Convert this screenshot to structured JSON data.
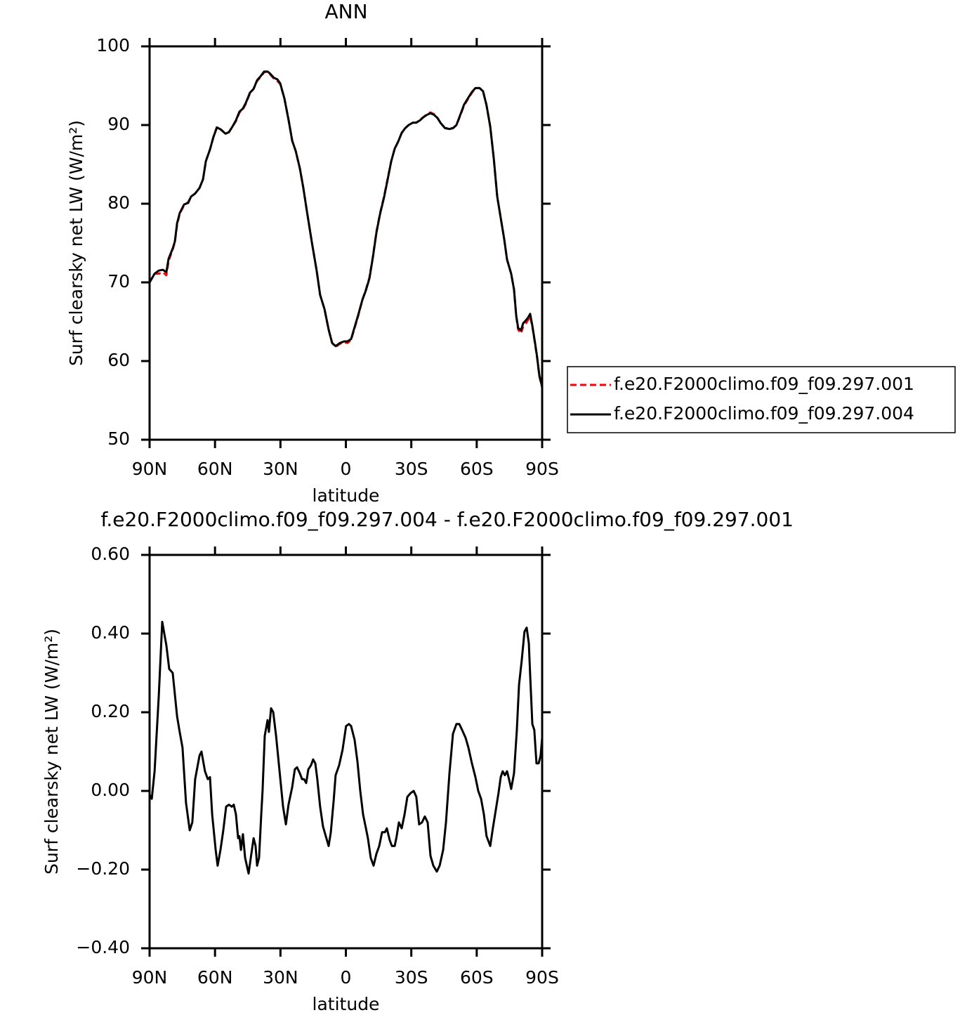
{
  "chart_data": [
    {
      "type": "line",
      "title": "ANN",
      "xlabel": "latitude",
      "ylabel": "Surf clearsky net LW (W/m²)",
      "x": [
        90,
        87.7,
        85.8,
        83.9,
        82.3,
        81.3,
        79.4,
        78.4,
        77.4,
        76.2,
        74.2,
        72.3,
        71.0,
        69.1,
        67.1,
        65.5,
        64.2,
        62.3,
        60.7,
        59.1,
        57.2,
        55.2,
        53.6,
        52.0,
        50.4,
        48.8,
        47.2,
        45.9,
        44.0,
        42.3,
        40.7,
        39.1,
        37.5,
        35.9,
        34.6,
        33.0,
        31.4,
        30.1,
        28.2,
        26.3,
        24.6,
        23.0,
        21.1,
        19.5,
        17.9,
        15.6,
        13.4,
        11.8,
        9.8,
        7.9,
        6.3,
        4.7,
        2.7,
        0.8,
        -0.8,
        -2.4,
        -4.0,
        -5.6,
        -7.6,
        -9.2,
        -10.8,
        -12.4,
        -14.0,
        -15.6,
        -17.5,
        -19.1,
        -20.8,
        -22.4,
        -24.0,
        -25.6,
        -27.2,
        -28.8,
        -30.7,
        -32.3,
        -34.0,
        -35.6,
        -37.2,
        -38.8,
        -40.4,
        -42.0,
        -43.6,
        -45.5,
        -47.5,
        -49.1,
        -50.7,
        -52.6,
        -54.2,
        -56.2,
        -57.8,
        -59.4,
        -61.3,
        -62.9,
        -64.5,
        -66.2,
        -67.8,
        -69.4,
        -71.0,
        -72.6,
        -73.9,
        -75.8,
        -77.1,
        -78.1,
        -79.0,
        -80.3,
        -81.3,
        -82.6,
        -83.5,
        -84.5,
        -85.5,
        -86.8,
        -87.7,
        -88.7,
        -90
      ],
      "xlim": [
        90,
        -90
      ],
      "xticks": [
        {
          "value": 90,
          "label": "90N"
        },
        {
          "value": 60,
          "label": "60N"
        },
        {
          "value": 30,
          "label": "30N"
        },
        0,
        {
          "value": -30,
          "label": "30S"
        },
        {
          "value": -60,
          "label": "60S"
        },
        {
          "value": -90,
          "label": "90S"
        }
      ],
      "ylim": [
        50,
        100
      ],
      "yticks": [
        50,
        60,
        70,
        80,
        90,
        100
      ],
      "legend": "right",
      "series": [
        {
          "name": "f.e20.F2000climo.f09_f09.297.001",
          "color": "#ff0000",
          "dash": "dashed",
          "values": [
            70.0,
            71.1,
            71.1,
            71.3,
            70.9,
            72.7,
            74.2,
            75.1,
            77.3,
            78.7,
            79.8,
            80.2,
            80.9,
            81.3,
            82.0,
            83.1,
            85.4,
            86.9,
            88.5,
            89.8,
            89.4,
            88.9,
            89.1,
            89.8,
            90.5,
            91.6,
            92.0,
            92.7,
            94.0,
            94.6,
            95.6,
            96.1,
            96.7,
            96.8,
            96.4,
            95.9,
            95.6,
            95.2,
            93.4,
            90.7,
            88.0,
            86.7,
            84.5,
            82.0,
            79.1,
            75.1,
            71.5,
            68.4,
            66.6,
            64.0,
            62.3,
            61.8,
            62.2,
            62.4,
            62.3,
            62.7,
            64.2,
            65.7,
            67.8,
            69.1,
            70.6,
            73.3,
            76.4,
            78.7,
            80.9,
            83.1,
            85.4,
            87.0,
            87.9,
            89.0,
            89.6,
            90.0,
            90.3,
            90.3,
            90.7,
            91.0,
            91.4,
            91.6,
            91.4,
            90.9,
            90.2,
            89.6,
            89.6,
            89.6,
            90.0,
            91.3,
            92.5,
            93.4,
            94.1,
            94.7,
            94.7,
            94.3,
            92.5,
            89.8,
            85.8,
            80.9,
            78.2,
            75.5,
            72.9,
            71.1,
            69.1,
            65.7,
            64.0,
            63.5,
            64.4,
            64.8,
            65.2,
            65.7,
            64.4,
            62.1,
            60.4,
            58.1,
            56.6
          ]
        },
        {
          "name": "f.e20.F2000climo.f09_f09.297.004",
          "color": "#000000",
          "dash": "solid",
          "values": [
            70.0,
            71.1,
            71.5,
            71.6,
            71.3,
            73.0,
            74.3,
            75.2,
            77.5,
            78.8,
            79.9,
            80.1,
            80.9,
            81.3,
            82.0,
            83.1,
            85.4,
            86.9,
            88.5,
            89.7,
            89.4,
            88.9,
            89.1,
            89.8,
            90.6,
            91.7,
            92.1,
            92.8,
            94.1,
            94.6,
            95.7,
            96.2,
            96.8,
            96.8,
            96.5,
            96.0,
            95.8,
            95.3,
            93.4,
            90.7,
            88.0,
            86.7,
            84.5,
            82.0,
            79.1,
            75.1,
            71.5,
            68.4,
            66.6,
            64.0,
            62.3,
            61.9,
            62.3,
            62.5,
            62.5,
            62.8,
            64.3,
            65.8,
            67.8,
            69.0,
            70.5,
            73.2,
            76.3,
            78.6,
            80.8,
            83.0,
            85.4,
            87.0,
            87.9,
            89.0,
            89.6,
            90.0,
            90.3,
            90.3,
            90.6,
            91.0,
            91.3,
            91.5,
            91.3,
            90.9,
            90.2,
            89.6,
            89.5,
            89.6,
            90.0,
            91.4,
            92.6,
            93.5,
            94.2,
            94.7,
            94.7,
            94.3,
            92.5,
            89.8,
            85.8,
            80.9,
            78.2,
            75.5,
            72.9,
            71.1,
            69.1,
            65.8,
            64.2,
            63.9,
            64.8,
            65.2,
            65.5,
            66.0,
            64.5,
            62.2,
            60.5,
            58.2,
            56.7
          ]
        }
      ]
    },
    {
      "type": "line",
      "title": "f.e20.F2000climo.f09_f09.297.004 - f.e20.F2000climo.f09_f09.297.001",
      "xlabel": "latitude",
      "ylabel": "Surf clearsky net LW (W/m²)",
      "x": [
        90,
        89.0,
        87.7,
        85.8,
        84.2,
        82.3,
        81.0,
        79.4,
        77.4,
        76.2,
        74.9,
        73.3,
        71.6,
        70.4,
        69.1,
        67.1,
        66.2,
        64.6,
        63.3,
        62.3,
        61.3,
        59.7,
        58.8,
        57.5,
        56.2,
        54.9,
        53.6,
        52.3,
        51.4,
        50.4,
        49.4,
        48.8,
        48.1,
        47.2,
        46.2,
        44.6,
        43.6,
        42.3,
        41.4,
        40.7,
        39.8,
        38.8,
        38.2,
        37.2,
        35.9,
        35.3,
        34.3,
        33.3,
        32.0,
        30.4,
        28.8,
        27.5,
        26.3,
        24.6,
        23.4,
        22.4,
        21.1,
        20.1,
        19.2,
        18.2,
        17.2,
        16.0,
        15.0,
        14.0,
        13.1,
        11.8,
        10.5,
        9.2,
        7.9,
        6.9,
        5.6,
        4.7,
        3.1,
        1.5,
        -0.1,
        -1.4,
        -2.4,
        -4.0,
        -5.3,
        -6.6,
        -7.9,
        -9.2,
        -10.1,
        -11.4,
        -12.7,
        -14.0,
        -15.3,
        -16.6,
        -17.9,
        -18.8,
        -20.1,
        -21.1,
        -22.4,
        -23.3,
        -24.3,
        -25.6,
        -26.9,
        -28.2,
        -29.8,
        -31.1,
        -32.3,
        -33.6,
        -34.9,
        -36.2,
        -37.5,
        -38.8,
        -40.1,
        -41.7,
        -43.0,
        -44.6,
        -45.9,
        -47.5,
        -49.1,
        -50.7,
        -52.0,
        -53.3,
        -54.9,
        -56.2,
        -57.8,
        -59.4,
        -60.7,
        -62.0,
        -63.3,
        -64.5,
        -66.2,
        -67.4,
        -68.7,
        -70.0,
        -71.0,
        -71.9,
        -72.9,
        -73.9,
        -74.8,
        -75.8,
        -77.1,
        -78.4,
        -79.4,
        -80.6,
        -81.9,
        -82.9,
        -83.9,
        -84.5,
        -85.5,
        -86.4,
        -87.4,
        -88.4,
        -89.3,
        -90
      ],
      "xlim": [
        90,
        -90
      ],
      "xticks": [
        {
          "value": 90,
          "label": "90N"
        },
        {
          "value": 60,
          "label": "60N"
        },
        {
          "value": 30,
          "label": "30N"
        },
        0,
        {
          "value": -30,
          "label": "30S"
        },
        {
          "value": -60,
          "label": "60S"
        },
        {
          "value": -90,
          "label": "90S"
        }
      ],
      "ylim": [
        -0.4,
        0.6
      ],
      "yticks": [
        {
          "value": -0.4,
          "label": "−0.40"
        },
        {
          "value": -0.2,
          "label": "−0.20"
        },
        {
          "value": 0,
          "label": "0.00"
        },
        {
          "value": 0.2,
          "label": "0.20"
        },
        {
          "value": 0.4,
          "label": "0.40"
        },
        {
          "value": 0.6,
          "label": "0.60"
        }
      ],
      "series": [
        {
          "color": "#000000",
          "dash": "solid",
          "values": [
            -0.01,
            -0.02,
            0.05,
            0.24,
            0.43,
            0.37,
            0.31,
            0.3,
            0.19,
            0.15,
            0.11,
            -0.03,
            -0.1,
            -0.08,
            0.03,
            0.09,
            0.1,
            0.05,
            0.03,
            0.035,
            -0.06,
            -0.15,
            -0.19,
            -0.15,
            -0.1,
            -0.04,
            -0.035,
            -0.04,
            -0.035,
            -0.06,
            -0.12,
            -0.115,
            -0.15,
            -0.11,
            -0.17,
            -0.21,
            -0.17,
            -0.12,
            -0.14,
            -0.19,
            -0.17,
            -0.06,
            0.0,
            0.14,
            0.18,
            0.15,
            0.21,
            0.2,
            0.14,
            0.05,
            -0.04,
            -0.085,
            -0.035,
            0.01,
            0.055,
            0.06,
            0.045,
            0.03,
            0.03,
            0.02,
            0.055,
            0.065,
            0.08,
            0.07,
            0.03,
            -0.04,
            -0.09,
            -0.115,
            -0.14,
            -0.105,
            -0.025,
            0.04,
            0.065,
            0.105,
            0.165,
            0.17,
            0.165,
            0.13,
            0.075,
            0.0,
            -0.06,
            -0.095,
            -0.12,
            -0.17,
            -0.19,
            -0.16,
            -0.14,
            -0.105,
            -0.105,
            -0.095,
            -0.125,
            -0.14,
            -0.14,
            -0.115,
            -0.08,
            -0.095,
            -0.06,
            -0.015,
            -0.005,
            0.0,
            -0.015,
            -0.085,
            -0.08,
            -0.065,
            -0.08,
            -0.165,
            -0.19,
            -0.205,
            -0.19,
            -0.15,
            -0.08,
            0.045,
            0.145,
            0.17,
            0.17,
            0.155,
            0.135,
            0.11,
            0.07,
            0.035,
            0.0,
            -0.02,
            -0.06,
            -0.115,
            -0.14,
            -0.095,
            -0.05,
            -0.005,
            0.035,
            0.05,
            0.04,
            0.05,
            0.03,
            0.005,
            0.045,
            0.155,
            0.27,
            0.33,
            0.405,
            0.415,
            0.375,
            0.295,
            0.17,
            0.155,
            0.07,
            0.07,
            0.09,
            0.135
          ]
        }
      ]
    }
  ]
}
